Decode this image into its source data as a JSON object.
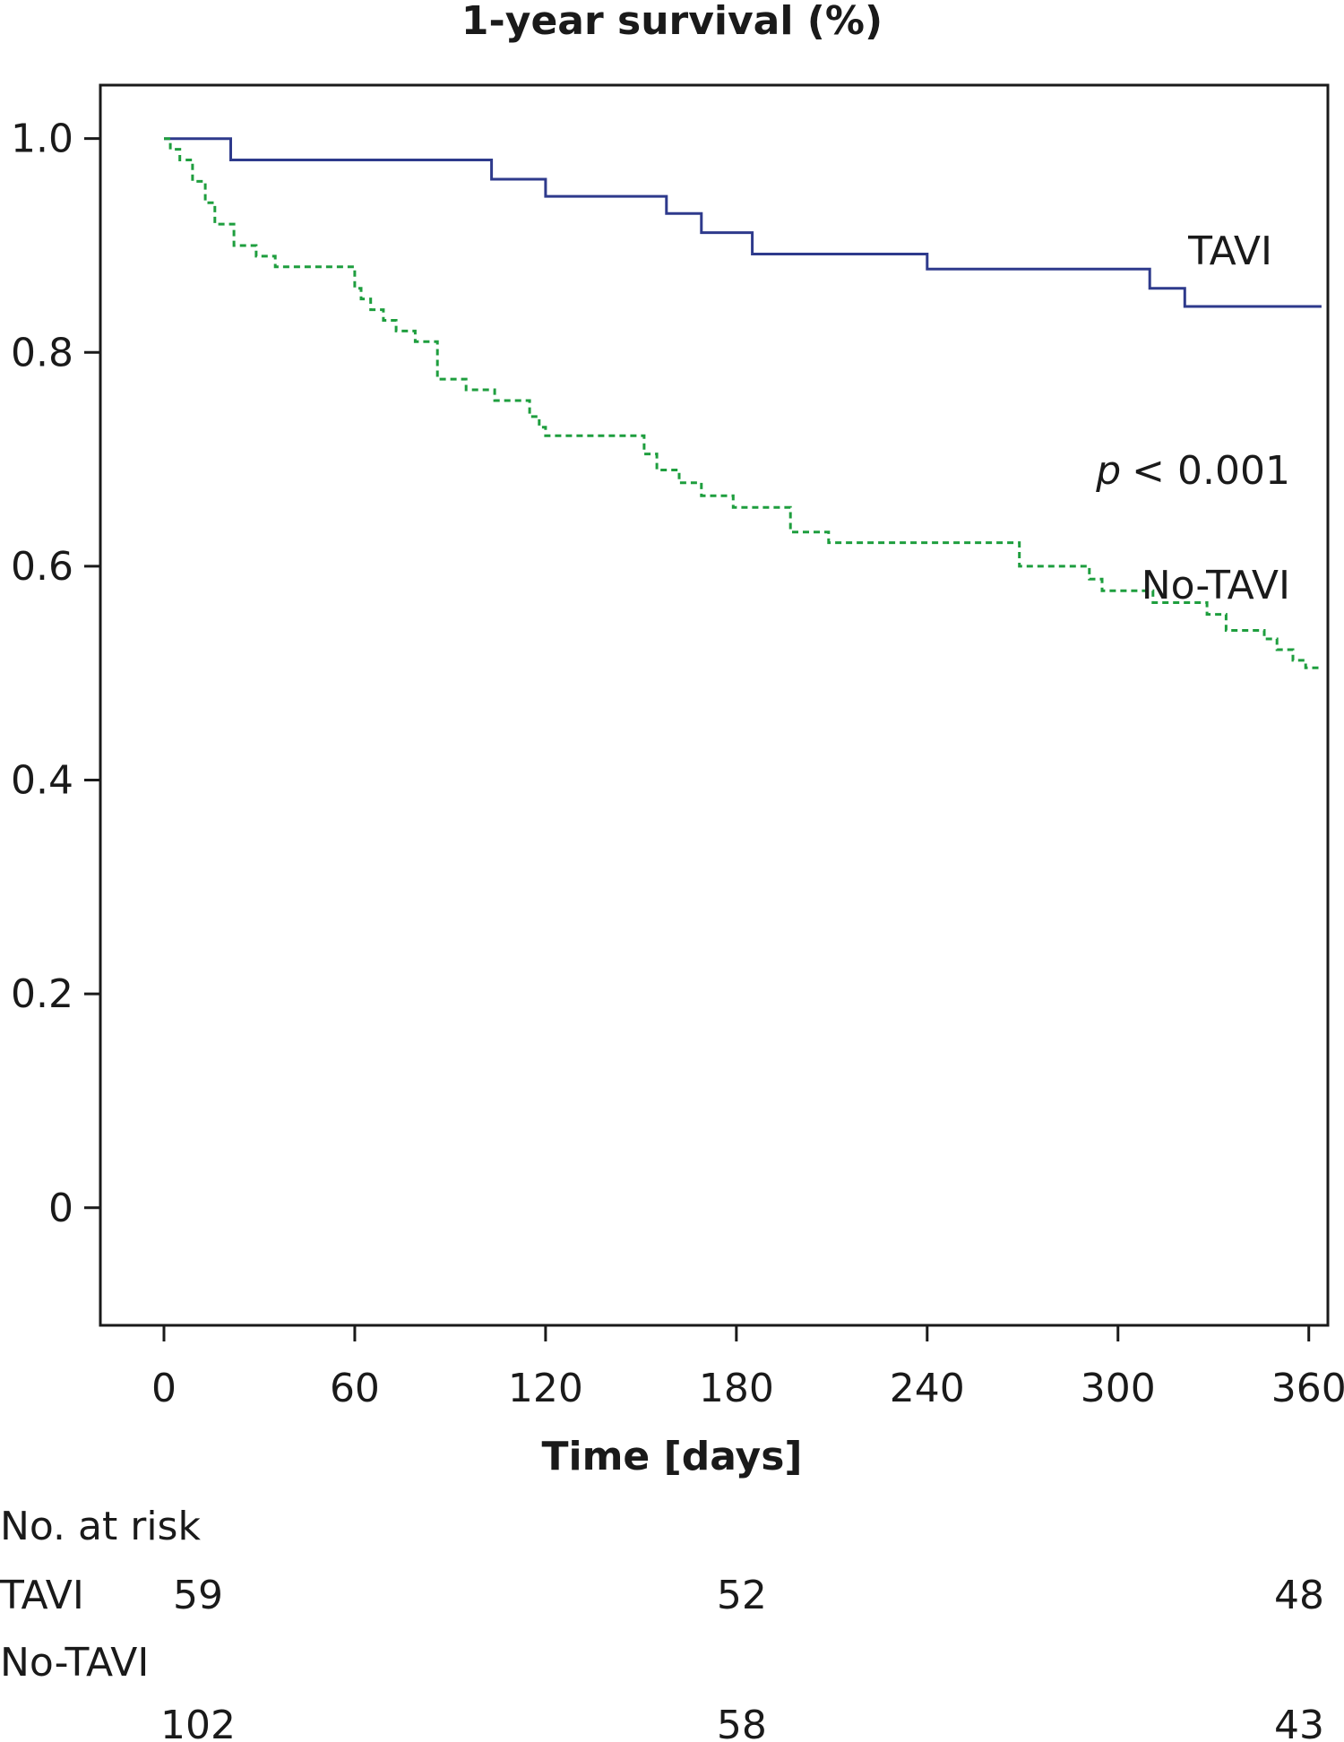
{
  "chart_data": {
    "type": "line",
    "title": "1-year survival (%)",
    "xlabel": "Time [days]",
    "ylabel": "",
    "xlim": [
      -20,
      366
    ],
    "ylim": [
      -0.11,
      1.05
    ],
    "x_ticks": [
      0,
      60,
      120,
      180,
      240,
      300,
      360
    ],
    "x_tick_labels": [
      "0",
      "60",
      "120",
      "180",
      "240",
      "300",
      "360"
    ],
    "y_ticks": [
      0,
      0.2,
      0.4,
      0.6,
      0.8,
      1.0
    ],
    "y_tick_labels": [
      "0",
      "0.2",
      "0.4",
      "0.6",
      "0.8",
      "1.0"
    ],
    "grid": false,
    "step": true,
    "series": [
      {
        "name": "TAVI",
        "color": "#2e3a8c",
        "style": "solid",
        "x": [
          0,
          21,
          103,
          120,
          158,
          169,
          185,
          240,
          310,
          321,
          364
        ],
        "y": [
          1.0,
          0.98,
          0.962,
          0.946,
          0.93,
          0.912,
          0.892,
          0.878,
          0.86,
          0.843,
          0.843
        ]
      },
      {
        "name": "No-TAVI",
        "color": "#1e9e3e",
        "style": "dashed",
        "x": [
          0,
          2,
          5,
          9,
          13,
          16,
          22,
          29,
          35,
          60,
          62,
          65,
          69,
          73,
          79,
          86,
          95,
          104,
          115,
          118,
          120,
          151,
          155,
          162,
          169,
          179,
          182,
          197,
          209,
          269,
          291,
          295,
          311,
          328,
          334,
          346,
          350,
          355,
          359,
          364
        ],
        "y": [
          1.0,
          0.99,
          0.98,
          0.96,
          0.94,
          0.92,
          0.9,
          0.89,
          0.88,
          0.86,
          0.85,
          0.84,
          0.83,
          0.82,
          0.81,
          0.775,
          0.765,
          0.755,
          0.74,
          0.73,
          0.722,
          0.705,
          0.69,
          0.678,
          0.666,
          0.655,
          0.655,
          0.632,
          0.622,
          0.6,
          0.588,
          0.577,
          0.566,
          0.555,
          0.54,
          0.532,
          0.522,
          0.512,
          0.505,
          0.505
        ]
      }
    ],
    "annotations": {
      "tavi_label": "TAVI",
      "notavi_label": "No-TAVI",
      "p_symbol": "p",
      "p_value": "< 0.001"
    },
    "risk_table": {
      "header": "No. at risk",
      "x": [
        0,
        180,
        360
      ],
      "rows": [
        {
          "label": "TAVI",
          "values": [
            "59",
            "52",
            "48"
          ]
        },
        {
          "label": "No-TAVI",
          "values": [
            "102",
            "58",
            "43"
          ]
        }
      ]
    }
  }
}
